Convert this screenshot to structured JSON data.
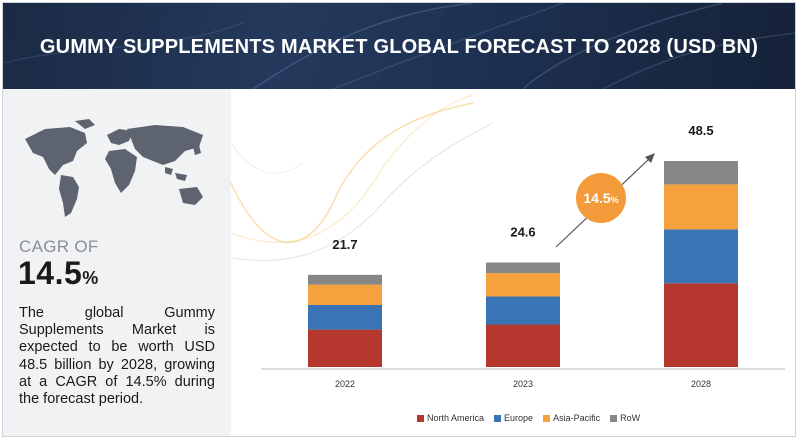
{
  "title": "GUMMY SUPPLEMENTS MARKET GLOBAL FORECAST TO 2028 (USD BN)",
  "cagr": {
    "label": "CAGR OF",
    "value_number": "14.5",
    "value_unit": "%"
  },
  "description": "The global Gummy Supplements Market is expected to be worth USD 48.5 billion by 2028, growing at a CAGR of 14.5% during the forecast period.",
  "growth_badge": {
    "number": "14.5",
    "unit": "%"
  },
  "colors": {
    "north_america": "#b5372d",
    "europe": "#3a74b4",
    "asia_pacific": "#f5a13e",
    "row": "#878787",
    "badge": "#f39a3a"
  },
  "chart_data": {
    "type": "bar",
    "stacked": true,
    "categories": [
      "2022",
      "2023",
      "2028"
    ],
    "totals": [
      "21.7",
      "24.6",
      "48.5"
    ],
    "series": [
      {
        "name": "North America",
        "values": [
          8.8,
          10.0,
          19.7
        ]
      },
      {
        "name": "Europe",
        "values": [
          5.8,
          6.6,
          12.7
        ]
      },
      {
        "name": "Asia-Pacific",
        "values": [
          4.8,
          5.5,
          10.6
        ]
      },
      {
        "name": "RoW",
        "values": [
          2.3,
          2.5,
          5.5
        ]
      }
    ],
    "ylim": [
      0,
      48.5
    ],
    "grid": false,
    "legend_position": "bottom"
  }
}
